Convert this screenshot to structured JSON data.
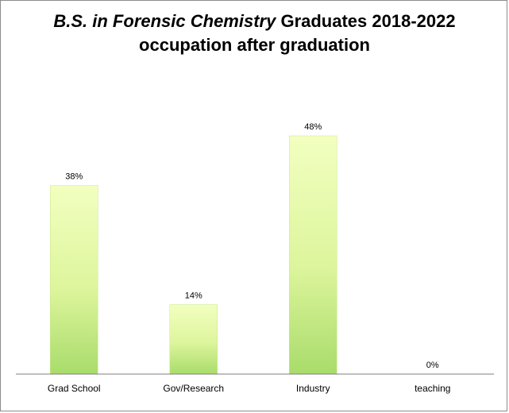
{
  "chart_data": {
    "type": "bar",
    "title_italic": "B.S. in Forensic Chemistry",
    "title_rest": " Graduates 2018-2022",
    "subtitle": "occupation after graduation",
    "categories": [
      "Grad School",
      "Gov/Research",
      "Industry",
      "teaching"
    ],
    "values": [
      38,
      14,
      48,
      0
    ],
    "data_labels": [
      "38%",
      "14%",
      "48%",
      "0%"
    ],
    "ylim": [
      0,
      60
    ],
    "grid": false,
    "bar_color": "#d9f59a"
  }
}
